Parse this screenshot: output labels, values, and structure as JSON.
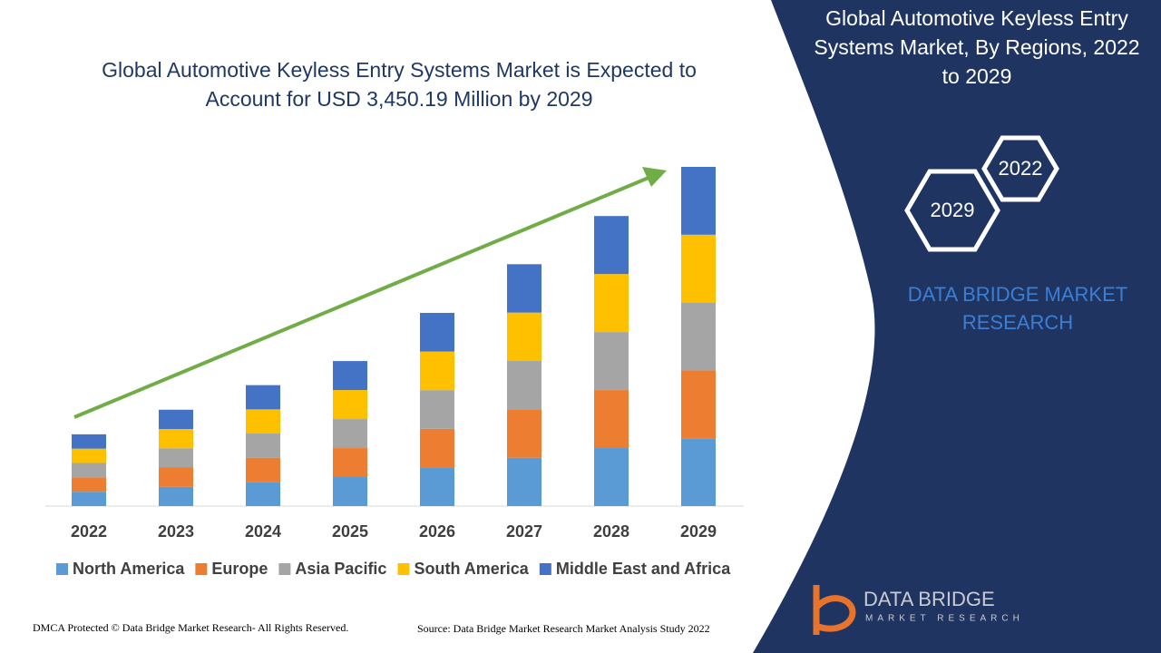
{
  "chart_data": {
    "type": "stacked-bar",
    "title": "Global Automotive Keyless Entry Systems Market is Expected to Account for USD 3,450.19 Million by 2029",
    "categories": [
      "2022",
      "2023",
      "2024",
      "2025",
      "2026",
      "2027",
      "2028",
      "2029"
    ],
    "series": [
      {
        "name": "North America",
        "color": "#5b9bd5",
        "values": [
          146,
          196,
          246,
          295,
          393,
          492,
          590,
          690
        ]
      },
      {
        "name": "Europe",
        "color": "#ed7d31",
        "values": [
          146,
          196,
          246,
          295,
          393,
          492,
          590,
          690
        ]
      },
      {
        "name": "Asia Pacific",
        "color": "#a5a5a5",
        "values": [
          146,
          196,
          246,
          295,
          393,
          492,
          590,
          690
        ]
      },
      {
        "name": "South America",
        "color": "#ffc000",
        "values": [
          146,
          196,
          246,
          295,
          393,
          492,
          590,
          690
        ]
      },
      {
        "name": "Middle East and Africa",
        "color": "#4472c4",
        "values": [
          146,
          196,
          246,
          295,
          393,
          492,
          590,
          690
        ]
      }
    ]
  },
  "panel": {
    "title": "Global Automotive Keyless Entry Systems Market, By Regions, 2022 to 2029",
    "hex_labels": [
      "2022",
      "2029"
    ],
    "brand": "DATA BRIDGE MARKET RESEARCH",
    "logo_name": "DATA BRIDGE",
    "logo_sub": "MARKET RESEARCH"
  },
  "footer": {
    "left": "DMCA Protected © Data Bridge Market Research- All Rights Reserved.",
    "right": "Source: Data Bridge Market Research Market Analysis Study 2022"
  }
}
